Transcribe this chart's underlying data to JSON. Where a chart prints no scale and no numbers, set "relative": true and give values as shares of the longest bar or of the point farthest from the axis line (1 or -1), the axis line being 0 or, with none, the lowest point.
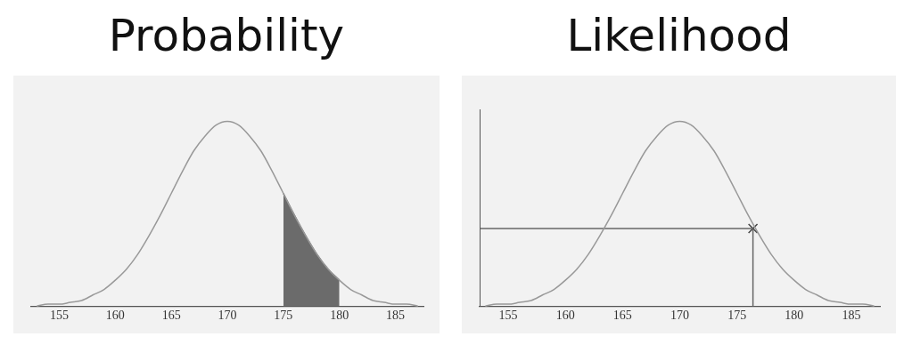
{
  "chart_data": [
    {
      "type": "line",
      "title": "Probability",
      "relative": true,
      "xlim": [
        152.5,
        187.5
      ],
      "xticks": [
        155,
        160,
        165,
        170,
        175,
        180,
        185
      ],
      "tick_labels": "x",
      "marker": "none",
      "series": [
        {
          "type": "line",
          "color": "#999999",
          "x": [
            153,
            154,
            155,
            156,
            157,
            158,
            159,
            160,
            161,
            162,
            163,
            164,
            165,
            166,
            167,
            168,
            169,
            170,
            171,
            172,
            173,
            174,
            175,
            176,
            177,
            178,
            179,
            180,
            181,
            182,
            183,
            184,
            185,
            186,
            187
          ],
          "values": [
            0.0,
            0.01,
            0.01,
            0.02,
            0.03,
            0.06,
            0.09,
            0.14,
            0.2,
            0.28,
            0.38,
            0.49,
            0.61,
            0.73,
            0.84,
            0.92,
            0.98,
            1,
            0.98,
            0.92,
            0.84,
            0.73,
            0.61,
            0.49,
            0.38,
            0.28,
            0.2,
            0.14,
            0.09,
            0.06,
            0.03,
            0.02,
            0.01,
            0.01,
            0.0
          ]
        },
        {
          "type": "area",
          "color": "#6b6b6b",
          "x": [
            175,
            176,
            177,
            178,
            179,
            180
          ],
          "values": [
            0.61,
            0.49,
            0.38,
            0.28,
            0.2,
            0.14
          ]
        }
      ]
    },
    {
      "type": "line",
      "title": "Likelihood",
      "relative": true,
      "xlim": [
        152.5,
        187.5
      ],
      "xticks": [
        155,
        160,
        165,
        170,
        175,
        180,
        185
      ],
      "tick_labels": "x",
      "marker": "none",
      "series": [
        {
          "type": "line",
          "color": "#999999",
          "x": [
            153,
            154,
            155,
            156,
            157,
            158,
            159,
            160,
            161,
            162,
            163,
            164,
            165,
            166,
            167,
            168,
            169,
            170,
            171,
            172,
            173,
            174,
            175,
            176,
            177,
            178,
            179,
            180,
            181,
            182,
            183,
            184,
            185,
            186,
            187
          ],
          "values": [
            0.0,
            0.01,
            0.01,
            0.02,
            0.03,
            0.06,
            0.09,
            0.14,
            0.2,
            0.28,
            0.38,
            0.49,
            0.61,
            0.73,
            0.84,
            0.92,
            0.98,
            1,
            0.98,
            0.92,
            0.84,
            0.73,
            0.61,
            0.49,
            0.38,
            0.28,
            0.2,
            0.14,
            0.09,
            0.06,
            0.03,
            0.02,
            0.01,
            0.01,
            0.0
          ]
        },
        {
          "type": "line",
          "color": "#666666",
          "x": [
            152.5,
            176.4
          ],
          "values": [
            0.42,
            0.42
          ]
        },
        {
          "type": "line",
          "color": "#666666",
          "x": [
            176.4,
            176.4
          ],
          "values": [
            0.42,
            0
          ]
        },
        {
          "type": "scatter",
          "color": "#444444",
          "marker": "cross",
          "x": [
            176.4
          ],
          "values": [
            0.42
          ]
        }
      ]
    }
  ]
}
